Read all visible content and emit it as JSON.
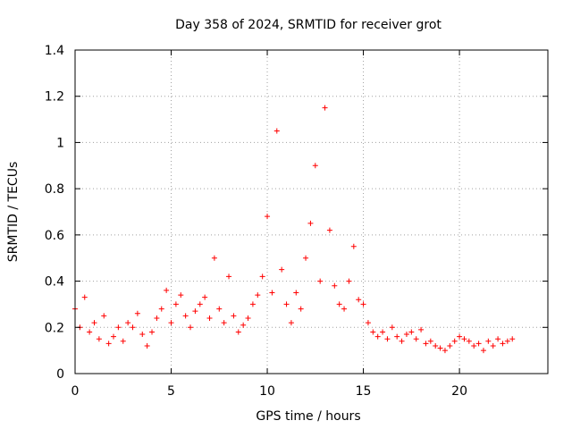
{
  "chart_data": {
    "type": "scatter",
    "title": "Day 358 of 2024, SRMTID for receiver grot",
    "xlabel": "GPS time / hours",
    "ylabel": "SRMTID / TECUs",
    "xlim": [
      0,
      24.6
    ],
    "ylim": [
      0,
      1.4
    ],
    "xticks": [
      0,
      5,
      10,
      15,
      20
    ],
    "yticks": [
      0,
      0.2,
      0.4,
      0.6,
      0.8,
      1,
      1.2,
      1.4
    ],
    "ytick_labels": [
      "0",
      "0.2",
      "0.4",
      "0.6",
      "0.8",
      "1",
      "1.2",
      "1.4"
    ],
    "grid": true,
    "marker": "+",
    "marker_color": "#ff0000",
    "series": [
      {
        "name": "SRMTID",
        "x": [
          0,
          0.25,
          0.5,
          0.75,
          1,
          1.25,
          1.5,
          1.75,
          2,
          2.25,
          2.5,
          2.75,
          3,
          3.25,
          3.5,
          3.75,
          4,
          4.25,
          4.5,
          4.75,
          5,
          5.25,
          5.5,
          5.75,
          6,
          6.25,
          6.5,
          6.75,
          7,
          7.25,
          7.5,
          7.75,
          8,
          8.25,
          8.5,
          8.75,
          9,
          9.25,
          9.5,
          9.75,
          10,
          10.25,
          10.5,
          10.75,
          11,
          11.25,
          11.5,
          11.75,
          12,
          12.25,
          12.5,
          12.75,
          13,
          13.25,
          13.5,
          13.75,
          14,
          14.25,
          14.5,
          14.75,
          15,
          15.25,
          15.5,
          15.75,
          16,
          16.25,
          16.5,
          16.75,
          17,
          17.25,
          17.5,
          17.75,
          18,
          18.25,
          18.5,
          18.75,
          19,
          19.25,
          19.5,
          19.75,
          20,
          20.25,
          20.5,
          20.75,
          21,
          21.25,
          21.5,
          21.75,
          22,
          22.25,
          22.5,
          22.75
        ],
        "y": [
          0.28,
          0.2,
          0.33,
          0.18,
          0.22,
          0.15,
          0.25,
          0.13,
          0.16,
          0.2,
          0.14,
          0.22,
          0.2,
          0.26,
          0.17,
          0.12,
          0.18,
          0.24,
          0.28,
          0.36,
          0.22,
          0.3,
          0.34,
          0.25,
          0.2,
          0.27,
          0.3,
          0.33,
          0.24,
          0.5,
          0.28,
          0.22,
          0.42,
          0.25,
          0.18,
          0.21,
          0.24,
          0.3,
          0.34,
          0.42,
          0.68,
          0.35,
          1.05,
          0.45,
          0.3,
          0.22,
          0.35,
          0.28,
          0.5,
          0.65,
          0.9,
          0.4,
          1.15,
          0.62,
          0.38,
          0.3,
          0.28,
          0.4,
          0.55,
          0.32,
          0.3,
          0.22,
          0.18,
          0.16,
          0.18,
          0.15,
          0.2,
          0.16,
          0.14,
          0.17,
          0.18,
          0.15,
          0.19,
          0.13,
          0.14,
          0.12,
          0.11,
          0.1,
          0.12,
          0.14,
          0.16,
          0.15,
          0.14,
          0.12,
          0.13,
          0.1,
          0.14,
          0.12,
          0.15,
          0.13,
          0.14,
          0.15
        ]
      }
    ]
  }
}
